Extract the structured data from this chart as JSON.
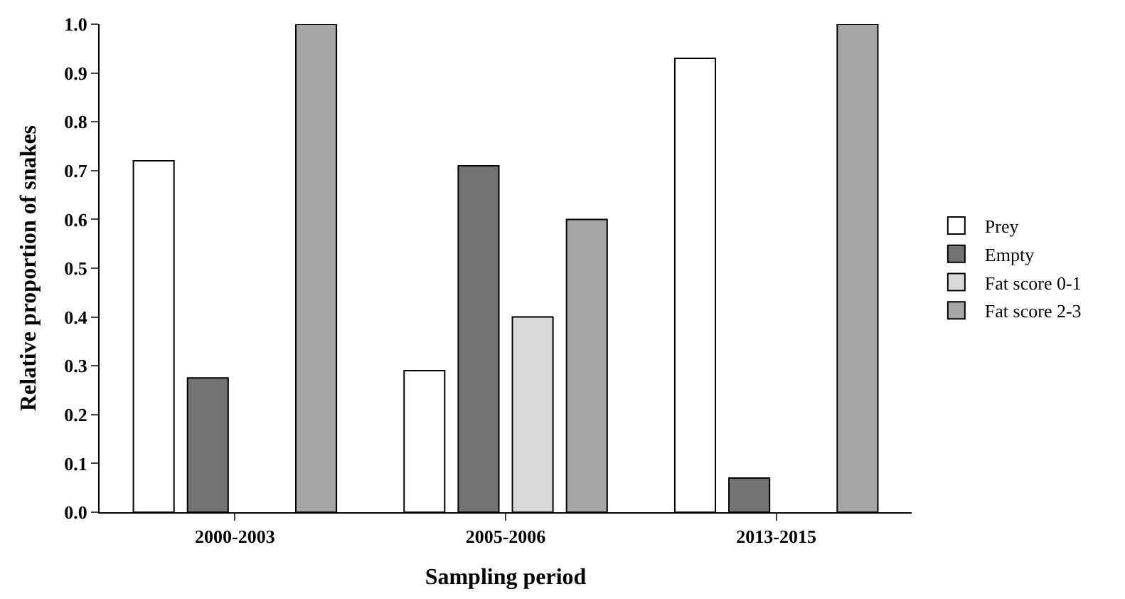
{
  "chart_data": {
    "type": "bar",
    "xlabel": "Sampling period",
    "ylabel": "Relative proportion of snakes",
    "categories": [
      "2000-2003",
      "2005-2006",
      "2013-2015"
    ],
    "series": [
      {
        "name": "Prey",
        "color": "#ffffff",
        "values": [
          0.72,
          0.29,
          0.93
        ]
      },
      {
        "name": "Empty",
        "color": "#737373",
        "values": [
          0.275,
          0.71,
          0.07
        ]
      },
      {
        "name": "Fat score 0-1",
        "color": "#d9d9d9",
        "values": [
          null,
          0.4,
          null
        ]
      },
      {
        "name": "Fat score 2-3",
        "color": "#a6a6a6",
        "values": [
          1.0,
          0.6,
          1.0
        ]
      }
    ],
    "ylim": [
      0,
      1.0
    ],
    "yticks": [
      {
        "value": 0,
        "label": "0.0"
      },
      0.1,
      0.2,
      0.3,
      0.4,
      0.5,
      0.6,
      0.7,
      0.8,
      0.9,
      {
        "value": 1,
        "label": "1.0"
      }
    ],
    "legend": "right"
  }
}
